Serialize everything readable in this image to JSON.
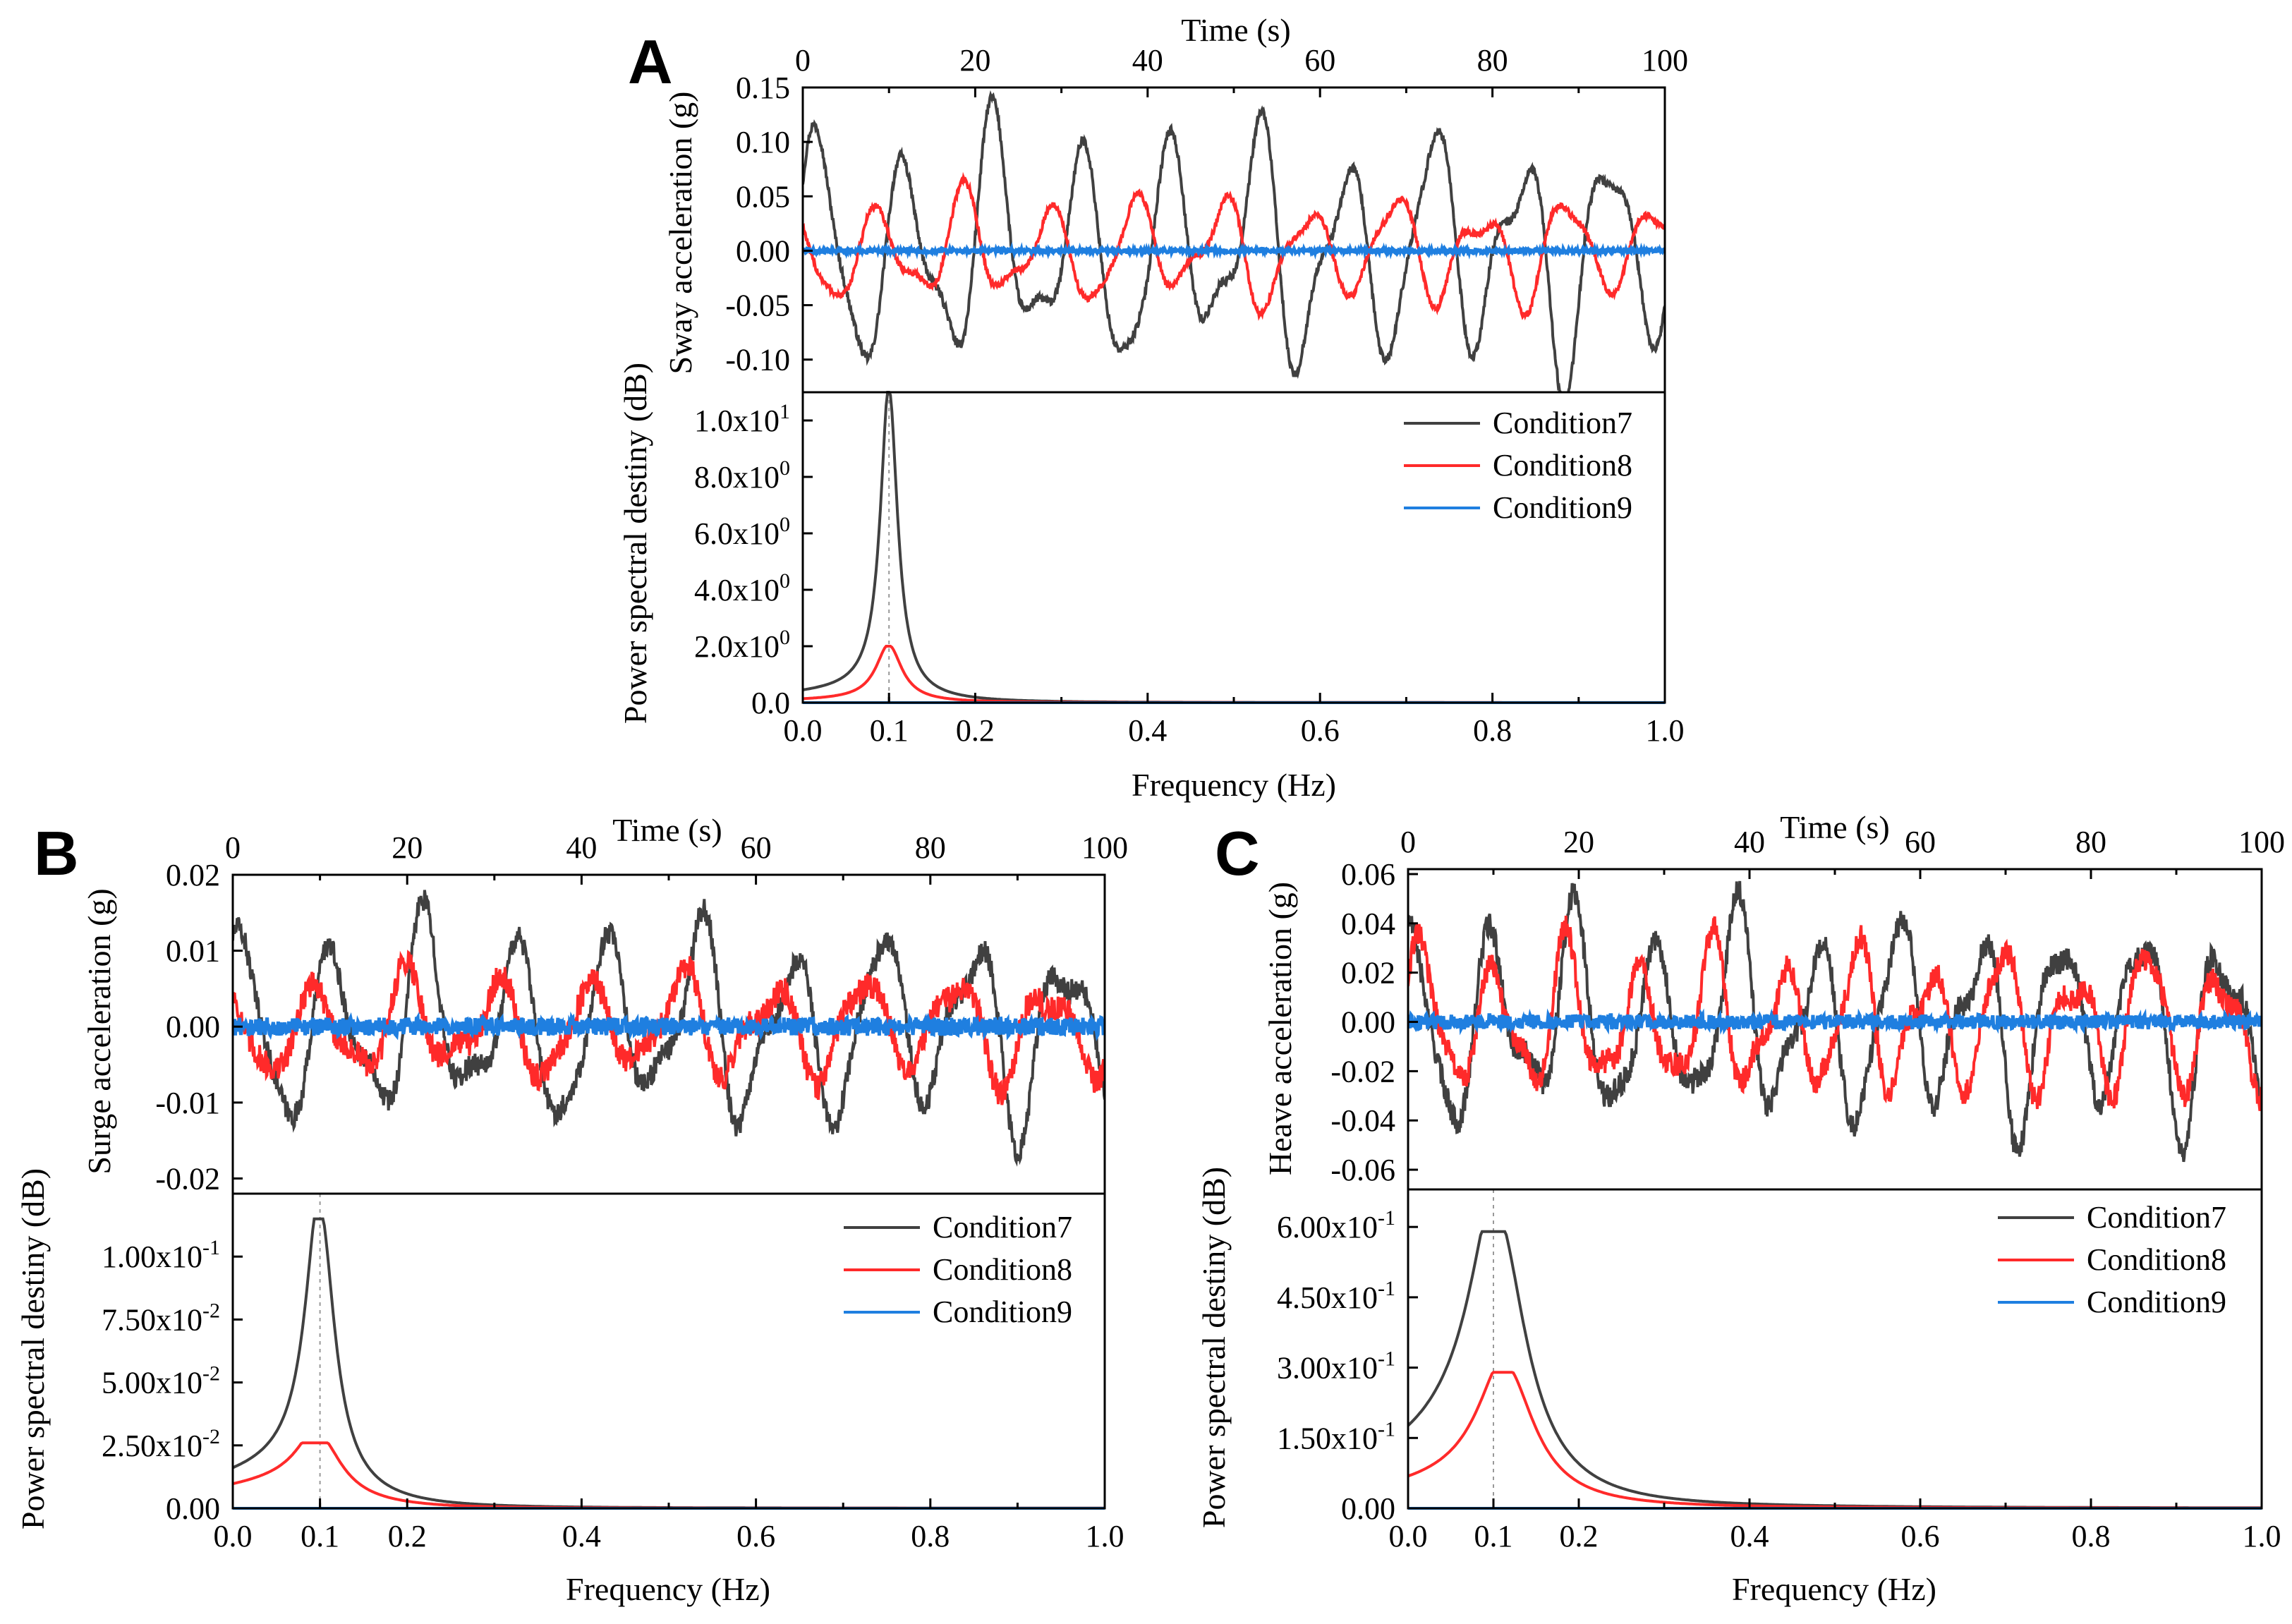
{
  "chart_data": [
    {
      "panel": "A",
      "type": "line",
      "time_series": {
        "xlabel": "Time (s)",
        "ylabel": "Sway acceleration (g)",
        "xlim": [
          0,
          100
        ],
        "ylim": [
          -0.13,
          0.15
        ],
        "xticks": [
          "0",
          "20",
          "40",
          "60",
          "80",
          "100"
        ],
        "yticks": [
          "0.15",
          "0.10",
          "0.05",
          "0.00",
          "-0.05",
          "-0.10"
        ],
        "ytick_values": [
          0.15,
          0.1,
          0.05,
          0.0,
          -0.05,
          -0.1
        ],
        "series": [
          {
            "name": "Condition7",
            "color": "#404040",
            "period_s": 10.2,
            "amplitude": 0.11,
            "phase": 0.5,
            "noise": 0.004
          },
          {
            "name": "Condition8",
            "color": "#ff2a2a",
            "period_s": 10.0,
            "amplitude": 0.05,
            "phase": 2.4,
            "noise": 0.003
          },
          {
            "name": "Condition9",
            "color": "#1f7fe0",
            "period_s": 10.0,
            "amplitude": 0.0,
            "phase": 0,
            "noise": 0.002
          }
        ]
      },
      "spectrum": {
        "xlabel": "Frequency (Hz)",
        "ylabel": "Power spectral destiny (dB)",
        "xlim": [
          0,
          1.0
        ],
        "ylim": [
          0,
          11.0
        ],
        "xticks": [
          "0.0",
          "0.1",
          "0.2",
          "0.4",
          "0.6",
          "0.8",
          "1.0"
        ],
        "xtick_values": [
          0.0,
          0.1,
          0.2,
          0.4,
          0.6,
          0.8,
          1.0
        ],
        "ytick_mantissas": [
          "0.0",
          "2.0x10",
          "4.0x10",
          "6.0x10",
          "8.0x10",
          "1.0x10"
        ],
        "ytick_exponents": [
          "",
          "0",
          "0",
          "0",
          "0",
          "1"
        ],
        "ytick_values": [
          0,
          2.0,
          4.0,
          6.0,
          8.0,
          10.0
        ],
        "peak_marker_hz": 0.1,
        "series": [
          {
            "name": "Condition7",
            "color": "#404040",
            "peak_hz": 0.1,
            "peak": 11.0,
            "base": 0.3,
            "width": 0.012
          },
          {
            "name": "Condition8",
            "color": "#ff2a2a",
            "peak_hz": 0.1,
            "peak": 2.0,
            "base": 0.08,
            "width": 0.018
          },
          {
            "name": "Condition9",
            "color": "#1f7fe0",
            "peak_hz": 0.1,
            "peak": 0.0,
            "base": 0.0,
            "width": 0.02
          }
        ],
        "legend": [
          "Condition7",
          "Condition8",
          "Condition9"
        ]
      }
    },
    {
      "panel": "B",
      "type": "line",
      "time_series": {
        "xlabel": "Time (s)",
        "ylabel": "Surge acceleration (g)",
        "xlim": [
          0,
          100
        ],
        "ylim": [
          -0.022,
          0.02
        ],
        "xticks": [
          "0",
          "20",
          "40",
          "60",
          "80",
          "100"
        ],
        "yticks": [
          "0.02",
          "0.01",
          "0.00",
          "-0.01",
          "-0.02"
        ],
        "ytick_values": [
          0.02,
          0.01,
          0.0,
          -0.01,
          -0.02
        ],
        "series": [
          {
            "name": "Condition7",
            "color": "#404040",
            "period_s": 10.5,
            "amplitude": 0.013,
            "phase": 1.0,
            "noise": 0.0015
          },
          {
            "name": "Condition8",
            "color": "#ff2a2a",
            "period_s": 10.5,
            "amplitude": 0.007,
            "phase": 2.2,
            "noise": 0.0018
          },
          {
            "name": "Condition9",
            "color": "#1f7fe0",
            "period_s": 10.0,
            "amplitude": 0.0,
            "phase": 0,
            "noise": 0.0012
          }
        ]
      },
      "spectrum": {
        "xlabel": "Frequency (Hz)",
        "ylabel": "Power spectral destiny (dB)",
        "xlim": [
          0,
          1.0
        ],
        "ylim": [
          0,
          0.125
        ],
        "xticks": [
          "0.0",
          "0.1",
          "0.2",
          "0.4",
          "0.6",
          "0.8",
          "1.0"
        ],
        "xtick_values": [
          0.0,
          0.1,
          0.2,
          0.4,
          0.6,
          0.8,
          1.0
        ],
        "ytick_mantissas": [
          "0.00",
          "2.50x10",
          "5.00x10",
          "7.50x10",
          "1.00x10"
        ],
        "ytick_exponents": [
          "",
          "-2",
          "-2",
          "-2",
          "-1"
        ],
        "ytick_values": [
          0,
          0.025,
          0.05,
          0.075,
          0.1
        ],
        "peak_marker_hz": 0.1,
        "series": [
          {
            "name": "Condition7",
            "color": "#404040",
            "peak_hz": 0.1,
            "peak": 0.115,
            "base": 0.012,
            "width": 0.02
          },
          {
            "name": "Condition8",
            "color": "#ff2a2a",
            "peak_hz": 0.1,
            "peak": 0.026,
            "base": 0.008,
            "width": 0.03
          },
          {
            "name": "Condition9",
            "color": "#1f7fe0",
            "peak_hz": 0.1,
            "peak": 0.0,
            "base": 0.0,
            "width": 0.03
          }
        ],
        "legend": [
          "Condition7",
          "Condition8",
          "Condition9"
        ]
      }
    },
    {
      "panel": "C",
      "type": "line",
      "time_series": {
        "xlabel": "Time (s)",
        "ylabel": "Heave acceleration (g)",
        "xlim": [
          0,
          100
        ],
        "ylim": [
          -0.068,
          0.062
        ],
        "xticks": [
          "0",
          "20",
          "40",
          "60",
          "80",
          "100"
        ],
        "yticks": [
          "0.06",
          "0.04",
          "0.02",
          "0.00",
          "-0.02",
          "-0.04",
          "-0.06"
        ],
        "ytick_values": [
          0.06,
          0.04,
          0.02,
          0.0,
          -0.02,
          -0.04,
          -0.06
        ],
        "series": [
          {
            "name": "Condition7",
            "color": "#404040",
            "period_s": 9.5,
            "amplitude": 0.042,
            "phase": 1.3,
            "noise": 0.005
          },
          {
            "name": "Condition8",
            "color": "#ff2a2a",
            "period_s": 8.5,
            "amplitude": 0.03,
            "phase": 0.4,
            "noise": 0.005
          },
          {
            "name": "Condition9",
            "color": "#1f7fe0",
            "period_s": 10.0,
            "amplitude": 0.0,
            "phase": 0,
            "noise": 0.003
          }
        ]
      },
      "spectrum": {
        "xlabel": "Frequency (Hz)",
        "ylabel": "Power spectral destiny (dB)",
        "xlim": [
          0,
          1.0
        ],
        "ylim": [
          0,
          0.68
        ],
        "xticks": [
          "0.0",
          "0.1",
          "0.2",
          "0.4",
          "0.6",
          "0.8",
          "1.0"
        ],
        "xtick_values": [
          0.0,
          0.1,
          0.2,
          0.4,
          0.6,
          0.8,
          1.0
        ],
        "ytick_mantissas": [
          "0.00",
          "1.50x10",
          "3.00x10",
          "4.50x10",
          "6.00x10"
        ],
        "ytick_exponents": [
          "",
          "-1",
          "-1",
          "-1",
          "-1"
        ],
        "ytick_values": [
          0,
          0.15,
          0.3,
          0.45,
          0.6
        ],
        "peak_marker_hz": 0.1,
        "series": [
          {
            "name": "Condition7",
            "color": "#404040",
            "peak_hz": 0.105,
            "peak": 0.59,
            "base": 0.11,
            "width": 0.04
          },
          {
            "name": "Condition8",
            "color": "#ff2a2a",
            "peak_hz": 0.115,
            "peak": 0.29,
            "base": 0.04,
            "width": 0.04
          },
          {
            "name": "Condition9",
            "color": "#1f7fe0",
            "peak_hz": 0.1,
            "peak": 0.0,
            "base": 0.0,
            "width": 0.04
          }
        ],
        "legend": [
          "Condition7",
          "Condition8",
          "Condition9"
        ]
      }
    }
  ]
}
